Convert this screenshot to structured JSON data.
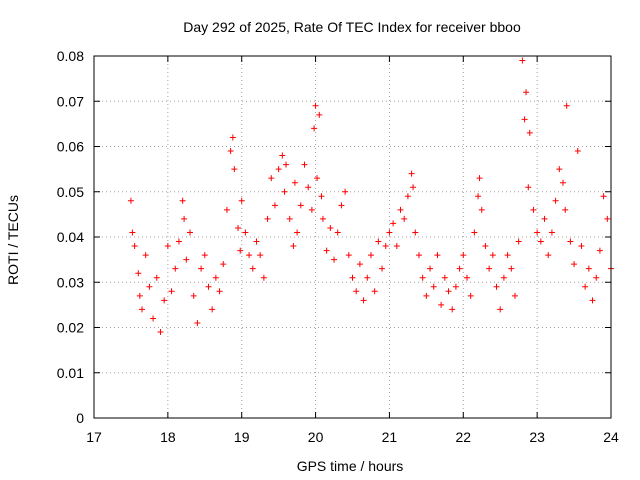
{
  "chart_data": {
    "type": "scatter",
    "title": "Day 292 of 2025, Rate Of TEC Index for receiver bboo",
    "xlabel": "GPS time / hours",
    "ylabel": "ROTI / TECUs",
    "xlim": [
      17,
      24
    ],
    "ylim": [
      0,
      0.08
    ],
    "xticks": [
      "17",
      "18",
      "19",
      "20",
      "21",
      "22",
      "23",
      "24"
    ],
    "yticks": [
      "0",
      "0.01",
      "0.02",
      "0.03",
      "0.04",
      "0.05",
      "0.06",
      "0.07",
      "0.08"
    ],
    "grid": true,
    "marker": "plus",
    "color": "#ff0000",
    "series": [
      {
        "x": [
          17.5,
          17.52,
          17.55,
          17.6,
          17.62,
          17.65,
          17.7,
          17.75,
          17.8,
          17.85,
          17.9,
          17.95,
          18.0,
          18.05,
          18.1,
          18.15,
          18.2,
          18.22,
          18.25,
          18.3,
          18.35,
          18.4,
          18.45,
          18.5,
          18.55,
          18.6,
          18.65,
          18.7,
          18.75,
          18.8,
          18.85,
          18.88,
          18.9,
          18.95,
          18.98,
          19.0,
          19.05,
          19.1,
          19.15,
          19.2,
          19.25,
          19.3,
          19.35,
          19.4,
          19.45,
          19.5,
          19.55,
          19.58,
          19.6,
          19.65,
          19.7,
          19.72,
          19.75,
          19.8,
          19.85,
          19.9,
          19.95,
          19.98,
          20.0,
          20.02,
          20.05,
          20.08,
          20.1,
          20.15,
          20.2,
          20.25,
          20.3,
          20.35,
          20.4,
          20.45,
          20.5,
          20.55,
          20.6,
          20.65,
          20.7,
          20.75,
          20.8,
          20.85,
          20.9,
          20.95,
          21.0,
          21.05,
          21.1,
          21.15,
          21.2,
          21.25,
          21.3,
          21.32,
          21.35,
          21.4,
          21.45,
          21.5,
          21.55,
          21.6,
          21.65,
          21.7,
          21.75,
          21.8,
          21.85,
          21.9,
          21.95,
          22.0,
          22.05,
          22.1,
          22.15,
          22.2,
          22.22,
          22.25,
          22.3,
          22.35,
          22.4,
          22.45,
          22.5,
          22.55,
          22.6,
          22.65,
          22.7,
          22.75,
          22.8,
          22.83,
          22.85,
          22.88,
          22.9,
          22.95,
          23.0,
          23.05,
          23.1,
          23.15,
          23.2,
          23.25,
          23.3,
          23.35,
          23.38,
          23.4,
          23.45,
          23.5,
          23.55,
          23.6,
          23.65,
          23.7,
          23.75,
          23.8,
          23.85,
          23.9,
          23.95,
          24.0
        ],
        "y": [
          0.048,
          0.041,
          0.038,
          0.032,
          0.027,
          0.024,
          0.036,
          0.029,
          0.022,
          0.031,
          0.019,
          0.026,
          0.038,
          0.028,
          0.033,
          0.039,
          0.048,
          0.044,
          0.035,
          0.041,
          0.027,
          0.021,
          0.033,
          0.036,
          0.029,
          0.024,
          0.031,
          0.028,
          0.034,
          0.046,
          0.059,
          0.062,
          0.055,
          0.042,
          0.037,
          0.048,
          0.041,
          0.036,
          0.033,
          0.039,
          0.036,
          0.031,
          0.044,
          0.053,
          0.047,
          0.055,
          0.058,
          0.05,
          0.056,
          0.044,
          0.038,
          0.052,
          0.041,
          0.047,
          0.056,
          0.051,
          0.046,
          0.064,
          0.069,
          0.053,
          0.067,
          0.049,
          0.044,
          0.037,
          0.042,
          0.035,
          0.041,
          0.047,
          0.05,
          0.036,
          0.031,
          0.028,
          0.034,
          0.026,
          0.031,
          0.036,
          0.028,
          0.039,
          0.033,
          0.038,
          0.041,
          0.043,
          0.038,
          0.046,
          0.044,
          0.049,
          0.054,
          0.051,
          0.041,
          0.036,
          0.031,
          0.027,
          0.033,
          0.029,
          0.036,
          0.025,
          0.031,
          0.028,
          0.024,
          0.029,
          0.033,
          0.036,
          0.031,
          0.027,
          0.041,
          0.049,
          0.053,
          0.046,
          0.038,
          0.033,
          0.036,
          0.029,
          0.024,
          0.031,
          0.036,
          0.033,
          0.027,
          0.039,
          0.079,
          0.066,
          0.072,
          0.051,
          0.063,
          0.046,
          0.041,
          0.039,
          0.044,
          0.036,
          0.041,
          0.048,
          0.055,
          0.052,
          0.046,
          0.069,
          0.039,
          0.034,
          0.059,
          0.038,
          0.029,
          0.033,
          0.026,
          0.031,
          0.037,
          0.049,
          0.044,
          0.033
        ]
      }
    ]
  }
}
